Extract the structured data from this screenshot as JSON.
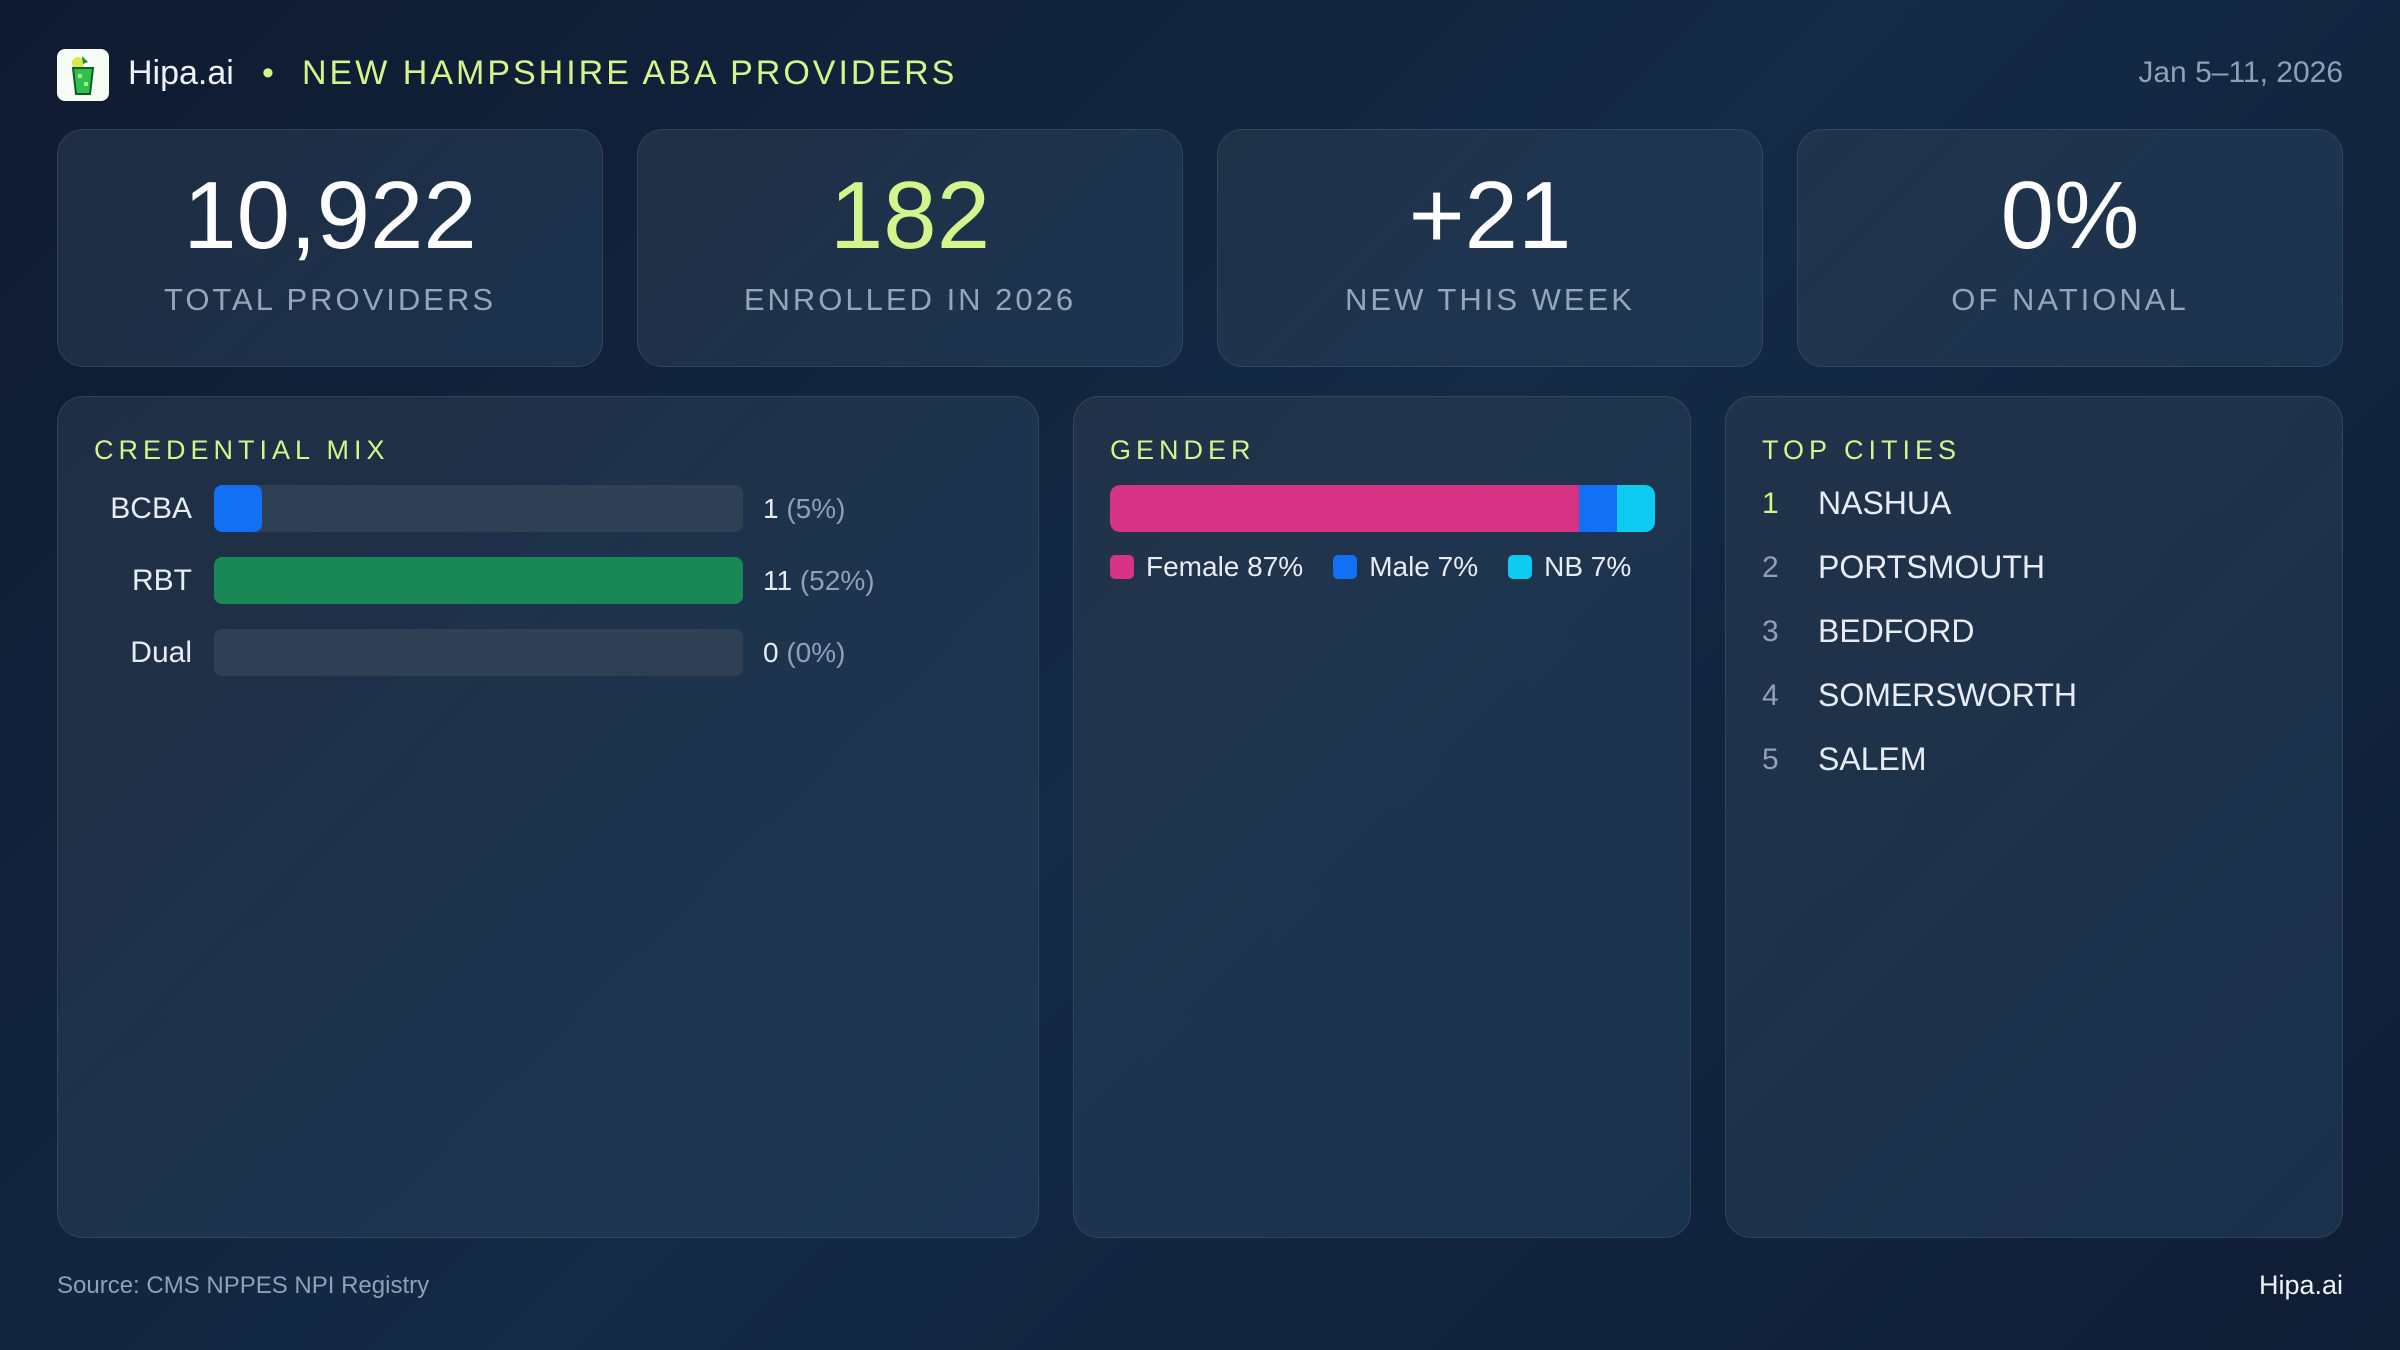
{
  "header": {
    "brand": "Hipa.ai",
    "separator": "•",
    "title": "NEW HAMPSHIRE ABA PROVIDERS",
    "date_range": "Jan 5–11, 2026",
    "logo_icon": "cocktail-glass-icon"
  },
  "stats": [
    {
      "value": "10,922",
      "label": "TOTAL PROVIDERS",
      "color": "#ffffff"
    },
    {
      "value": "182",
      "label": "ENROLLED IN 2026",
      "color": "#d4f58c"
    },
    {
      "value": "+21",
      "label": "NEW THIS WEEK",
      "color": "#ffffff"
    },
    {
      "value": "0%",
      "label": "OF NATIONAL",
      "color": "#ffffff"
    }
  ],
  "credential_mix": {
    "title": "CREDENTIAL MIX",
    "rows": [
      {
        "label": "BCBA",
        "count": 1,
        "count_text": "1",
        "pct_text": "(5%)",
        "color": "#1270f5"
      },
      {
        "label": "RBT",
        "count": 11,
        "count_text": "11",
        "pct_text": "(52%)",
        "color": "#1a8856"
      },
      {
        "label": "Dual",
        "count": 0,
        "count_text": "0",
        "pct_text": "(0%)",
        "color": "#6b7a8f"
      }
    ]
  },
  "gender": {
    "title": "GENDER",
    "segments": [
      {
        "label": "Female 87%",
        "pct": 87,
        "color": "#d63384"
      },
      {
        "label": "Male 7%",
        "pct": 7,
        "color": "#1270f5"
      },
      {
        "label": "NB 7%",
        "pct": 7,
        "color": "#0dcaf0"
      }
    ]
  },
  "top_cities": {
    "title": "TOP CITIES",
    "items": [
      {
        "rank": "1",
        "name": "NASHUA"
      },
      {
        "rank": "2",
        "name": "PORTSMOUTH"
      },
      {
        "rank": "3",
        "name": "BEDFORD"
      },
      {
        "rank": "4",
        "name": "SOMERSWORTH"
      },
      {
        "rank": "5",
        "name": "SALEM"
      }
    ]
  },
  "footer": {
    "source": "Source: CMS NPPES NPI Registry",
    "brand": "Hipa.ai"
  }
}
